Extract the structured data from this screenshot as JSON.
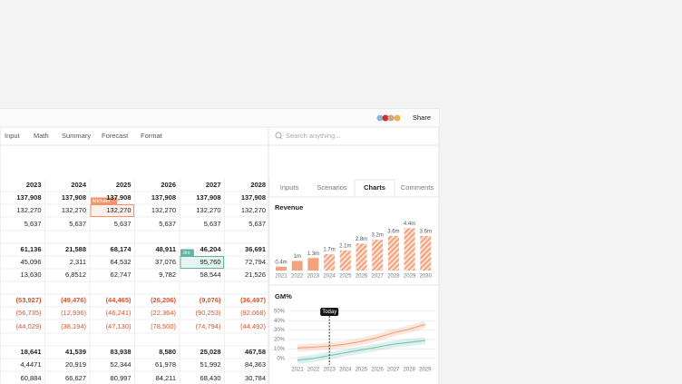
{
  "toolbar": {
    "share": "Share"
  },
  "tabs": [
    "Input",
    "Math",
    "Summary",
    "Forecast",
    "Format"
  ],
  "search_placeholder": "Search anything...",
  "table": {
    "header": [
      "2023",
      "2024",
      "2025",
      "2026",
      "2027",
      "2028"
    ],
    "bold_rows": [
      0,
      3,
      6,
      9
    ],
    "rows": [
      [
        "137,908",
        "137,908",
        "137,908",
        "137,908",
        "137,908",
        "137,908"
      ],
      [
        "132,270",
        "132,270",
        "132,270",
        "132,270",
        "132,270",
        "132,270"
      ],
      [
        "5,637",
        "5,637",
        "5,637",
        "5,637",
        "5,637",
        "5,637"
      ],
      [
        "61,136",
        "21,588",
        "68,174",
        "48,911",
        "46,204",
        "36,691"
      ],
      [
        "45,096",
        "2,311",
        "64,532",
        "37,076",
        "95,760",
        "72,794"
      ],
      [
        "13,630",
        "6,8512",
        "62,747",
        "9,782",
        "58,544",
        "21,526"
      ],
      [
        "(53,927)",
        "(49,476)",
        "(44,465)",
        "(26,206)",
        "(9,076)",
        "(36,497)"
      ],
      [
        "(56,735)",
        "(12,936)",
        "(46,241)",
        "(22,364)",
        "(90,253)",
        "(92,068)"
      ],
      [
        "(44,029)",
        "(38,194)",
        "(47,130)",
        "(78,500)",
        "(74,794)",
        "(44,492)"
      ],
      [
        "18,641",
        "41,539",
        "83,938",
        "8,580",
        "25,028",
        "467,58"
      ],
      [
        "4,4471",
        "20,919",
        "52,344",
        "61,978",
        "51,992",
        "84,363"
      ],
      [
        "60,884",
        "66,627",
        "80,997",
        "84,211",
        "68,430",
        "30,784"
      ]
    ],
    "highlights": [
      {
        "row": 1,
        "col": 2,
        "user": "Michael",
        "color": "#f0956b"
      },
      {
        "row": 4,
        "col": 4,
        "user": "Jim",
        "color": "#5bb5a2"
      }
    ]
  },
  "panel_tabs": [
    "Inputs",
    "Scenarios",
    "Charts",
    "Comments"
  ],
  "active_panel_tab": 2,
  "revenue": {
    "type": "bar",
    "title": "Revenue",
    "categories": [
      "2021",
      "2022",
      "2023",
      "2024",
      "2025",
      "2026",
      "2027",
      "2028",
      "2029",
      "2030"
    ],
    "values": [
      0.4,
      1,
      1.3,
      1.7,
      2.1,
      2.8,
      3.2,
      3.6,
      4.4,
      3.6
    ],
    "value_labels": [
      "0.4m",
      "1m",
      "1.3m",
      "1.7m",
      "2.1m",
      "2.8m",
      "3.2m",
      "3.6m",
      "4.4m",
      "3.6m"
    ],
    "color": "#f2a27e",
    "forecast_start_index": 3,
    "ylim": [
      0,
      5
    ]
  },
  "gm": {
    "type": "line",
    "title": "GM%",
    "categories": [
      "2021",
      "2022",
      "2023",
      "2024",
      "2025",
      "2026",
      "2027",
      "2028",
      "2029"
    ],
    "series": [
      {
        "color": "#f2a27e",
        "values": [
          11,
          12,
          13,
          15,
          18,
          22,
          27,
          31,
          36
        ]
      },
      {
        "color": "#7cc4b8",
        "values": [
          -2,
          0,
          3,
          6,
          9,
          12,
          15,
          17,
          19
        ]
      }
    ],
    "ylim": [
      -5,
      50
    ],
    "yticks": [
      {
        "value": 0,
        "label": "0%"
      },
      {
        "value": 10,
        "label": "10%"
      },
      {
        "value": 20,
        "label": "20%"
      },
      {
        "value": 30,
        "label": "30%"
      },
      {
        "value": 40,
        "label": "40%"
      },
      {
        "value": 50,
        "label": "50%"
      }
    ],
    "marker": {
      "label": "Today",
      "index": 2
    }
  }
}
